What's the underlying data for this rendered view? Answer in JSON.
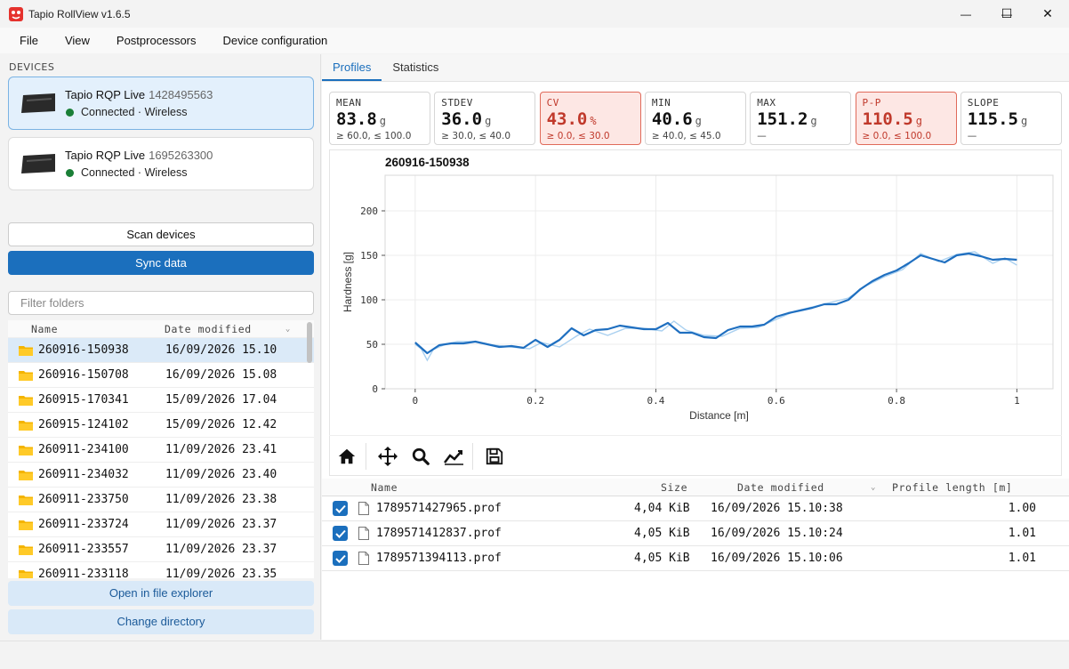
{
  "window": {
    "title": "Tapio RollView v1.6.5",
    "minimize_glyph": "—",
    "maximize_glyph": "☐",
    "close_glyph": "✕"
  },
  "menu": [
    "File",
    "View",
    "Postprocessors",
    "Device configuration"
  ],
  "sidebar": {
    "devices_label": "DEVICES",
    "devices": [
      {
        "name": "Tapio RQP Live",
        "id": "1428495563",
        "status": "Connected · Wireless",
        "selected": true
      },
      {
        "name": "Tapio RQP Live",
        "id": "1695263300",
        "status": "Connected · Wireless",
        "selected": false
      }
    ],
    "scan_button": "Scan devices",
    "sync_button": "Sync data",
    "filter_placeholder": "Filter folders",
    "folder_columns": {
      "name": "Name",
      "date": "Date modified"
    },
    "folders": [
      {
        "name": "260916-150938",
        "date": "16/09/2026 15.10"
      },
      {
        "name": "260916-150708",
        "date": "16/09/2026 15.08"
      },
      {
        "name": "260915-170341",
        "date": "15/09/2026 17.04"
      },
      {
        "name": "260915-124102",
        "date": "15/09/2026 12.42"
      },
      {
        "name": "260911-234100",
        "date": "11/09/2026 23.41"
      },
      {
        "name": "260911-234032",
        "date": "11/09/2026 23.40"
      },
      {
        "name": "260911-233750",
        "date": "11/09/2026 23.38"
      },
      {
        "name": "260911-233724",
        "date": "11/09/2026 23.37"
      },
      {
        "name": "260911-233557",
        "date": "11/09/2026 23.37"
      },
      {
        "name": "260911-233118",
        "date": "11/09/2026 23.35"
      }
    ],
    "open_explorer_button": "Open in file explorer",
    "change_dir_button": "Change directory"
  },
  "tabs": [
    "Profiles",
    "Statistics"
  ],
  "stats": [
    {
      "label": "MEAN",
      "value": "83.8",
      "unit": "g",
      "limit": "≥ 60.0, ≤ 100.0",
      "bad": false
    },
    {
      "label": "STDEV",
      "value": "36.0",
      "unit": "g",
      "limit": "≥ 30.0, ≤ 40.0",
      "bad": false
    },
    {
      "label": "CV",
      "value": "43.0",
      "unit": "%",
      "limit": "≥ 0.0, ≤ 30.0",
      "bad": true
    },
    {
      "label": "MIN",
      "value": "40.6",
      "unit": "g",
      "limit": "≥ 40.0, ≤ 45.0",
      "bad": false
    },
    {
      "label": "MAX",
      "value": "151.2",
      "unit": "g",
      "limit": "—",
      "bad": false
    },
    {
      "label": "P-P",
      "value": "110.5",
      "unit": "g",
      "limit": "≥ 0.0, ≤ 100.0",
      "bad": true
    },
    {
      "label": "SLOPE",
      "value": "115.5",
      "unit": "g",
      "limit": "—",
      "bad": false
    }
  ],
  "chart_data": {
    "type": "line",
    "title": "260916-150938",
    "xlabel": "Distance [m]",
    "ylabel": "Hardness [g]",
    "xlim": [
      -0.05,
      1.06
    ],
    "ylim": [
      0,
      240
    ],
    "xticks": [
      0.0,
      0.2,
      0.4,
      0.6,
      0.8,
      1.0
    ],
    "yticks": [
      0,
      50,
      100,
      150,
      200
    ],
    "grid": true,
    "colors": {
      "mean": "#1f6fc0",
      "raw": "#a9d0f0"
    },
    "series": [
      {
        "x": [
          0.0,
          0.02,
          0.04,
          0.06,
          0.08,
          0.1,
          0.12,
          0.14,
          0.16,
          0.18,
          0.2,
          0.22,
          0.24,
          0.26,
          0.28,
          0.3,
          0.32,
          0.34,
          0.36,
          0.38,
          0.4,
          0.42,
          0.44,
          0.46,
          0.48,
          0.5,
          0.52,
          0.54,
          0.56,
          0.58,
          0.6,
          0.62,
          0.64,
          0.66,
          0.68,
          0.7,
          0.72,
          0.74,
          0.76,
          0.78,
          0.8,
          0.82,
          0.84,
          0.86,
          0.88,
          0.9,
          0.92,
          0.94,
          0.96,
          0.98,
          1.0
        ],
        "values": [
          52,
          40,
          49,
          51,
          51,
          53,
          50,
          47,
          48,
          46,
          55,
          47,
          55,
          68,
          60,
          66,
          67,
          71,
          69,
          67,
          67,
          74,
          63,
          63,
          58,
          57,
          66,
          70,
          70,
          72,
          81,
          85,
          88,
          91,
          95,
          95,
          100,
          112,
          121,
          128,
          133,
          141,
          150,
          146,
          142,
          150,
          152,
          149,
          145,
          146,
          145
        ]
      },
      {
        "x": [
          0.0,
          0.01,
          0.02,
          0.03,
          0.05,
          0.07,
          0.1,
          0.13,
          0.16,
          0.19,
          0.21,
          0.24,
          0.27,
          0.29,
          0.32,
          0.35,
          0.38,
          0.41,
          0.43,
          0.45,
          0.48,
          0.51,
          0.54,
          0.57,
          0.6,
          0.63,
          0.66,
          0.69,
          0.72,
          0.75,
          0.78,
          0.81,
          0.84,
          0.87,
          0.9,
          0.93,
          0.96,
          0.98,
          1.0
        ],
        "values": [
          50,
          45,
          32,
          44,
          50,
          53,
          53,
          49,
          47,
          45,
          52,
          47,
          60,
          67,
          60,
          68,
          68,
          65,
          76,
          66,
          60,
          59,
          68,
          69,
          78,
          87,
          92,
          97,
          102,
          116,
          126,
          134,
          152,
          143,
          151,
          154,
          141,
          147,
          139
        ]
      }
    ]
  },
  "file_columns": {
    "name": "Name",
    "size": "Size",
    "date": "Date modified",
    "length": "Profile length [m]"
  },
  "files": [
    {
      "name": "1789571427965.prof",
      "size": "4,04 KiB",
      "date": "16/09/2026 15.10:38",
      "length": "1.00"
    },
    {
      "name": "1789571412837.prof",
      "size": "4,05 KiB",
      "date": "16/09/2026 15.10:24",
      "length": "1.01"
    },
    {
      "name": "1789571394113.prof",
      "size": "4,05 KiB",
      "date": "16/09/2026 15.10:06",
      "length": "1.01"
    }
  ]
}
